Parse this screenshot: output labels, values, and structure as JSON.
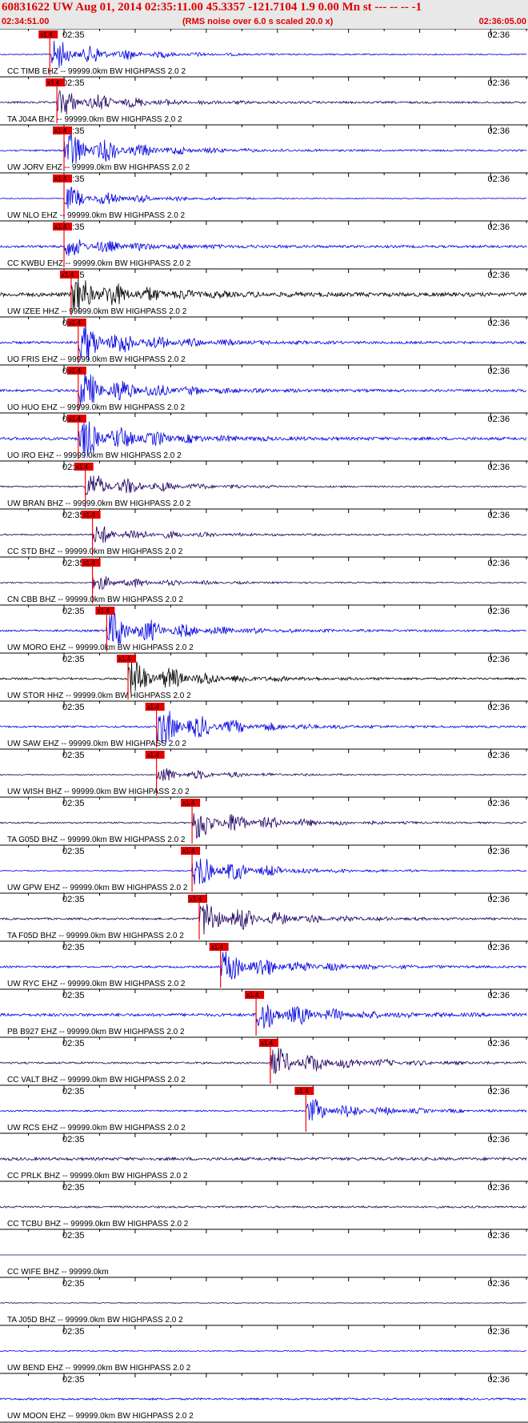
{
  "header": {
    "title": "60831622 UW Aug 01, 2014 02:35:11.00   45.3357 -121.7104  1.9 0.00 Mn st --- -- --   -1",
    "start_time": "02:34:51.00",
    "rms_note": "(RMS noise over 6.0 s scaled 20.0 x)",
    "end_time": "02:36:05.00"
  },
  "colors": {
    "pick": "#ff0000",
    "pick_label_bg": "#e00000",
    "title": "#e00000"
  },
  "chart_data": {
    "type": "line",
    "time_range": [
      "02:34:51.00",
      "02:36:05.00"
    ],
    "minute_labels": [
      "02:35",
      "02:36"
    ],
    "pick_label": "x1.4",
    "traces": [
      {
        "label": "CC TIMB EHZ -- 99999.0km BW  HIGHPASS  2.0  2",
        "color": "#0000e0",
        "pick_time": "02:34:58",
        "amp": 0.8,
        "noise": 0.12
      },
      {
        "label": "TA J04A BHZ -- 99999.0km BW  HIGHPASS  2.0  2",
        "color": "#200060",
        "pick_time": "02:34:59",
        "amp": 0.7,
        "noise": 0.2
      },
      {
        "label": "UW JORV EHZ -- 99999.0km BW  HIGHPASS  2.0  2",
        "color": "#0000e0",
        "pick_time": "02:35:00",
        "amp": 1.0,
        "noise": 0.18
      },
      {
        "label": "UW NLO EHZ -- 99999.0km BW  HIGHPASS  2.0  2",
        "color": "#0000e0",
        "pick_time": "02:35:00",
        "amp": 0.6,
        "noise": 0.08
      },
      {
        "label": "CC KWBU EHZ -- 99999.0km BW  HIGHPASS  2.0  2",
        "color": "#0000e0",
        "pick_time": "02:35:00",
        "amp": 0.5,
        "noise": 0.25
      },
      {
        "label": "UW IZEE HHZ -- 99999.0km BW  HIGHPASS  2.0  2",
        "color": "#000000",
        "pick_time": "02:35:01",
        "amp": 1.0,
        "noise": 0.4
      },
      {
        "label": "UO FRIS EHZ -- 99999.0km BW  HIGHPASS  2.0  2",
        "color": "#0000e0",
        "pick_time": "02:35:02",
        "amp": 1.0,
        "noise": 0.25
      },
      {
        "label": "UO HUO EHZ -- 99999.0km BW  HIGHPASS  2.0  2",
        "color": "#0000e0",
        "pick_time": "02:35:02",
        "amp": 1.0,
        "noise": 0.25
      },
      {
        "label": "UO IRO EHZ -- 99999.0km BW  HIGHPASS  2.0  2",
        "color": "#0000e0",
        "pick_time": "02:35:02",
        "amp": 1.0,
        "noise": 0.3
      },
      {
        "label": "UW BRAN BHZ -- 99999.0km BW  HIGHPASS  2.0  2",
        "color": "#200060",
        "pick_time": "02:35:03",
        "amp": 0.7,
        "noise": 0.15
      },
      {
        "label": "CC STD BHZ -- 99999.0km BW  HIGHPASS  2.0  2",
        "color": "#200060",
        "pick_time": "02:35:04",
        "amp": 0.5,
        "noise": 0.15
      },
      {
        "label": "CN CBB BHZ -- 99999.0km BW  HIGHPASS  2.0  2",
        "color": "#200060",
        "pick_time": "02:35:04",
        "amp": 0.4,
        "noise": 0.12
      },
      {
        "label": "UW MORO EHZ -- 99999.0km BW  HIGHPASS  2.0  2",
        "color": "#0000e0",
        "pick_time": "02:35:06",
        "amp": 1.0,
        "noise": 0.2
      },
      {
        "label": "UW STOR HHZ -- 99999.0km BW  HIGHPASS  2.0  2",
        "color": "#000000",
        "pick_time": "02:35:09",
        "amp": 1.0,
        "noise": 0.2
      },
      {
        "label": "UW SAW EHZ -- 99999.0km BW  HIGHPASS  2.0  2",
        "color": "#0000e0",
        "pick_time": "02:35:13",
        "amp": 1.0,
        "noise": 0.2
      },
      {
        "label": "UW WISH BHZ -- 99999.0km BW  HIGHPASS  2.0  2",
        "color": "#200060",
        "pick_time": "02:35:13",
        "amp": 0.4,
        "noise": 0.1
      },
      {
        "label": "TA G05D BHZ -- 99999.0km BW  HIGHPASS  2.0  2",
        "color": "#200060",
        "pick_time": "02:35:18",
        "amp": 0.9,
        "noise": 0.15
      },
      {
        "label": "UW GPW EHZ -- 99999.0km BW  HIGHPASS  2.0  2",
        "color": "#0000e0",
        "pick_time": "02:35:18",
        "amp": 0.9,
        "noise": 0.1
      },
      {
        "label": "TA F05D BHZ -- 99999.0km BW  HIGHPASS  2.0  2",
        "color": "#200060",
        "pick_time": "02:35:19",
        "amp": 1.0,
        "noise": 0.2
      },
      {
        "label": "UW RYC EHZ -- 99999.0km BW  HIGHPASS  2.0  2",
        "color": "#0000e0",
        "pick_time": "02:35:22",
        "amp": 0.9,
        "noise": 0.2
      },
      {
        "label": "PB B927 EHZ -- 99999.0km BW  HIGHPASS  2.0  2",
        "color": "#0000e0",
        "pick_time": "02:35:27",
        "amp": 0.8,
        "noise": 0.3
      },
      {
        "label": "CC VALT BHZ -- 99999.0km BW  HIGHPASS  2.0  2",
        "color": "#200060",
        "pick_time": "02:35:29",
        "amp": 0.8,
        "noise": 0.2
      },
      {
        "label": "UW RCS EHZ -- 99999.0km BW  HIGHPASS  2.0  2",
        "color": "#0000e0",
        "pick_time": "02:35:34",
        "amp": 0.6,
        "noise": 0.15
      },
      {
        "label": "CC PRLK BHZ -- 99999.0km BW  HIGHPASS  2.0  2",
        "color": "#200060",
        "pick_time": "",
        "amp": 1.0,
        "noise": 0.3
      },
      {
        "label": "CC TCBU BHZ -- 99999.0km BW  HIGHPASS  2.0  2",
        "color": "#200060",
        "pick_time": "",
        "amp": 0.0,
        "noise": 0.2
      },
      {
        "label": "CC WIFE BHZ -- 99999.0km",
        "color": "#200060",
        "pick_time": "",
        "amp": 0.0,
        "noise": 0.0
      },
      {
        "label": "TA J05D BHZ -- 99999.0km BW  HIGHPASS  2.0  2",
        "color": "#200060",
        "pick_time": "",
        "amp": 0.0,
        "noise": 0.08
      },
      {
        "label": "UW BEND EHZ -- 99999.0km BW  HIGHPASS  2.0  2",
        "color": "#0000e0",
        "pick_time": "",
        "amp": 0.2,
        "noise": 0.12
      },
      {
        "label": "UW MOON EHZ -- 99999.0km BW  HIGHPASS  2.0  2",
        "color": "#0000e0",
        "pick_time": "",
        "amp": 0.0,
        "noise": 0.2
      }
    ]
  }
}
